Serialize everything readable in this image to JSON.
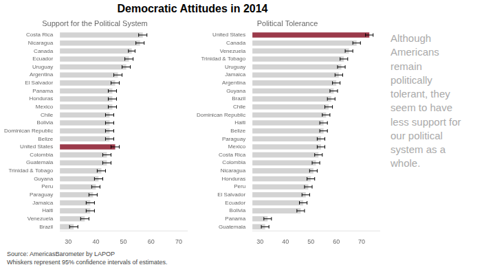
{
  "title": "Democratic Attitudes in 2014",
  "annotations": [
    {
      "text": "Although\nAmericans\nremain\npolitically\ntolerant, they\nseem to have\nless support for\nour political\nsystem as a\nwhole.",
      "color": "#aaaaaa"
    },
    {
      "text": "Source: AmericasBarometer by LAPOP\nWhiskers represent 95% confidence intervals of estimates.",
      "color": "#444444"
    }
  ],
  "chart_data": [
    {
      "type": "bar",
      "orientation": "horizontal",
      "title": "Support for the Political System",
      "categories": [
        "Costa Rica",
        "Nicaragua",
        "Canada",
        "Ecuador",
        "Uruguay",
        "Argentina",
        "El Salvador",
        "Panama",
        "Honduras",
        "Mexico",
        "Chile",
        "Bolivia",
        "Dominican Republic",
        "Belize",
        "United States",
        "Colombia",
        "Guatemala",
        "Trinidad & Tobago",
        "Guyana",
        "Peru",
        "Paraguay",
        "Jamaica",
        "Haiti",
        "Venezuela",
        "Brazil"
      ],
      "values": [
        57,
        56,
        53,
        52,
        51,
        48,
        47,
        46,
        46,
        46,
        45,
        45,
        45,
        45,
        47,
        44,
        44,
        42,
        41,
        40,
        39,
        38,
        38,
        36,
        32
      ],
      "errors": [
        1.5,
        1.5,
        1.2,
        1.5,
        1.5,
        1.5,
        1.5,
        1.5,
        1.5,
        1.5,
        1.5,
        1.5,
        1.5,
        1.5,
        1.5,
        1.5,
        1.5,
        1.5,
        1.5,
        1.5,
        1.5,
        1.5,
        1.5,
        1.5,
        1.5
      ],
      "colors": [
        "#d3d3d3",
        "#d3d3d3",
        "#d3d3d3",
        "#d3d3d3",
        "#d3d3d3",
        "#d3d3d3",
        "#d3d3d3",
        "#d3d3d3",
        "#d3d3d3",
        "#d3d3d3",
        "#d3d3d3",
        "#d3d3d3",
        "#d3d3d3",
        "#d3d3d3",
        "#9b3a4a",
        "#d3d3d3",
        "#d3d3d3",
        "#d3d3d3",
        "#d3d3d3",
        "#d3d3d3",
        "#d3d3d3",
        "#d3d3d3",
        "#d3d3d3",
        "#d3d3d3",
        "#d3d3d3"
      ],
      "xlim": [
        27,
        73
      ],
      "xticks": [
        30,
        40,
        50,
        60,
        70
      ],
      "grid": false
    },
    {
      "type": "bar",
      "orientation": "horizontal",
      "title": "Political Tolerance",
      "categories": [
        "United States",
        "Canada",
        "Venezuela",
        "Trinidad & Tobago",
        "Uruguay",
        "Jamaica",
        "Argentina",
        "Guyana",
        "Brazil",
        "Chile",
        "Dominican Republic",
        "Haiti",
        "Belize",
        "Paraguay",
        "Mexico",
        "Costa Rica",
        "Colombia",
        "Nicaragua",
        "Honduras",
        "Peru",
        "El Salvador",
        "Ecuador",
        "Bolivia",
        "Panama",
        "Guatemala"
      ],
      "values": [
        73,
        68,
        65,
        63,
        62,
        61,
        60,
        59,
        58,
        57,
        56,
        55,
        55,
        54,
        54,
        53,
        52,
        51,
        50,
        49,
        48,
        47,
        46,
        33,
        32
      ],
      "errors": [
        1.5,
        1.5,
        1.5,
        1.5,
        1.5,
        1.5,
        1.5,
        1.5,
        1.5,
        1.5,
        1.5,
        1.5,
        1.5,
        1.5,
        1.5,
        1.5,
        1.5,
        1.5,
        1.5,
        1.5,
        1.5,
        1.5,
        1.5,
        1.5,
        1.5
      ],
      "colors": [
        "#9b3a4a",
        "#d3d3d3",
        "#d3d3d3",
        "#d3d3d3",
        "#d3d3d3",
        "#d3d3d3",
        "#d3d3d3",
        "#d3d3d3",
        "#d3d3d3",
        "#d3d3d3",
        "#d3d3d3",
        "#d3d3d3",
        "#d3d3d3",
        "#d3d3d3",
        "#d3d3d3",
        "#d3d3d3",
        "#d3d3d3",
        "#d3d3d3",
        "#d3d3d3",
        "#d3d3d3",
        "#d3d3d3",
        "#d3d3d3",
        "#d3d3d3",
        "#d3d3d3",
        "#d3d3d3"
      ],
      "xlim": [
        27,
        77
      ],
      "xticks": [
        30,
        40,
        50,
        60,
        70
      ],
      "grid": false
    }
  ]
}
